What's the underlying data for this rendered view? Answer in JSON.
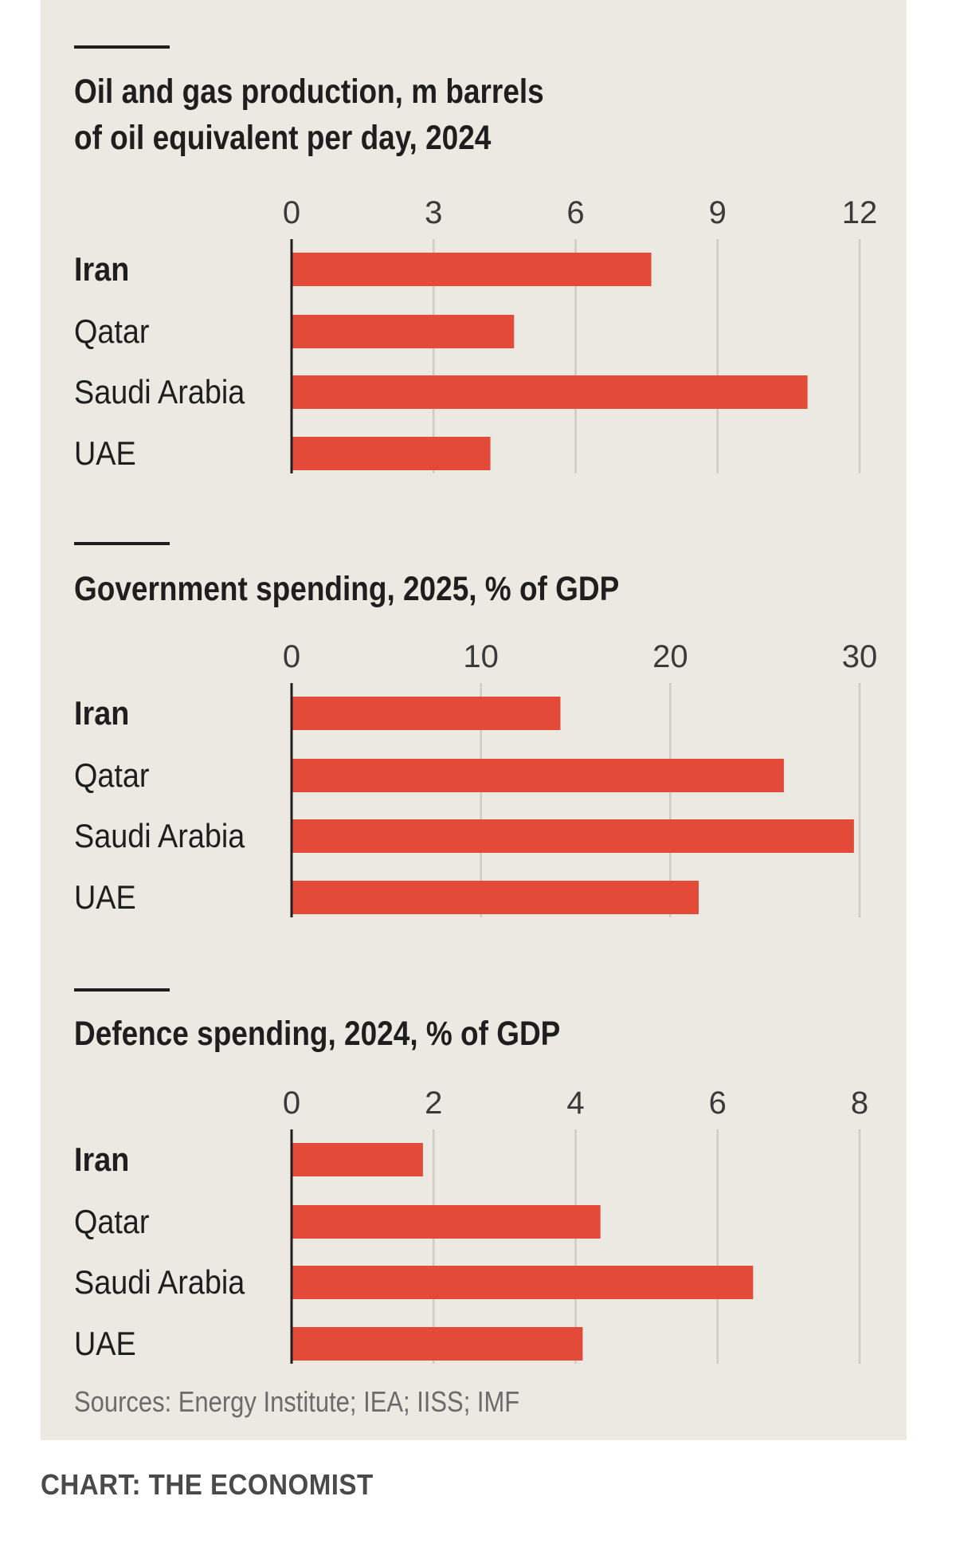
{
  "chart_data": [
    {
      "type": "bar",
      "orientation": "horizontal",
      "title": "Oil and gas production, m barrels of oil equivalent per day, 2024",
      "title_lines": [
        "Oil and gas production, m barrels",
        "of oil equivalent per day, 2024"
      ],
      "categories": [
        "Iran",
        "Qatar",
        "Saudi Arabia",
        "UAE"
      ],
      "highlight_category": "Iran",
      "values": [
        7.6,
        4.7,
        10.9,
        4.2
      ],
      "xlim": [
        0,
        12
      ],
      "ticks": [
        0,
        3,
        6,
        9,
        12
      ],
      "tick_labels": [
        "0",
        "3",
        "6",
        "9",
        "12"
      ],
      "grid": true
    },
    {
      "type": "bar",
      "orientation": "horizontal",
      "title": "Government spending, 2025, % of GDP",
      "title_lines": [
        "Government spending, 2025, % of GDP"
      ],
      "categories": [
        "Iran",
        "Qatar",
        "Saudi Arabia",
        "UAE"
      ],
      "highlight_category": "Iran",
      "values": [
        14.2,
        26.0,
        29.7,
        21.5
      ],
      "xlim": [
        0,
        30
      ],
      "ticks": [
        0,
        10,
        20,
        30
      ],
      "tick_labels": [
        "0",
        "10",
        "20",
        "30"
      ],
      "grid": true
    },
    {
      "type": "bar",
      "orientation": "horizontal",
      "title": "Defence spending, 2024, % of GDP",
      "title_lines": [
        "Defence spending, 2024, % of GDP"
      ],
      "categories": [
        "Iran",
        "Qatar",
        "Saudi Arabia",
        "UAE"
      ],
      "highlight_category": "Iran",
      "values": [
        1.85,
        4.35,
        6.5,
        4.1
      ],
      "xlim": [
        0,
        8
      ],
      "ticks": [
        0,
        2,
        4,
        6,
        8
      ],
      "tick_labels": [
        "0",
        "2",
        "4",
        "6",
        "8"
      ],
      "grid": true
    }
  ],
  "sources": "Sources: Energy Institute; IEA; IISS; IMF",
  "credit": "CHART: THE ECONOMIST",
  "colors": {
    "bar": "#e34a38",
    "background": "#ebe9e1",
    "grid": "#cfccc3",
    "text": "#1e1e1e",
    "tick_text": "#3a3a3a",
    "sources_text": "#6b6b6b"
  }
}
